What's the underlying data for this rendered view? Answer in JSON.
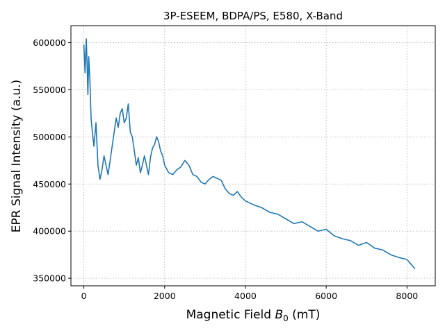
{
  "chart_data": {
    "type": "line",
    "title": "3P-ESEEM, BDPA/PS, E580, X-Band",
    "xlabel_prefix": "Magnetic Field ",
    "xlabel_var": "B",
    "xlabel_sub": "0",
    "xlabel_suffix": " (mT)",
    "ylabel": "EPR Signal Intensity (a.u.)",
    "xlim": [
      -320,
      8700
    ],
    "ylim": [
      342000,
      618000
    ],
    "xticks": [
      0,
      2000,
      4000,
      6000,
      8000
    ],
    "xtick_labels": [
      "0",
      "2000",
      "4000",
      "6000",
      "8000"
    ],
    "yticks": [
      350000,
      400000,
      450000,
      500000,
      550000,
      600000
    ],
    "ytick_labels": [
      "350000",
      "400000",
      "450000",
      "500000",
      "550000",
      "600000"
    ],
    "grid": true,
    "series": [
      {
        "color": "#1f77b4",
        "x": [
          0,
          30,
          60,
          80,
          100,
          120,
          150,
          180,
          210,
          250,
          300,
          350,
          400,
          450,
          500,
          550,
          600,
          650,
          700,
          750,
          800,
          850,
          900,
          950,
          1000,
          1050,
          1100,
          1150,
          1200,
          1250,
          1300,
          1350,
          1400,
          1450,
          1500,
          1550,
          1600,
          1650,
          1700,
          1750,
          1800,
          1850,
          1900,
          1950,
          2000,
          2100,
          2200,
          2300,
          2400,
          2500,
          2600,
          2700,
          2800,
          2900,
          3000,
          3100,
          3200,
          3300,
          3400,
          3500,
          3600,
          3700,
          3800,
          3900,
          4000,
          4200,
          4400,
          4600,
          4800,
          5000,
          5200,
          5400,
          5600,
          5800,
          6000,
          6200,
          6400,
          6600,
          6800,
          7000,
          7200,
          7400,
          7600,
          7800,
          8000,
          8100,
          8200
        ],
        "y": [
          598000,
          568000,
          604000,
          578000,
          545000,
          585000,
          560000,
          520000,
          505000,
          490000,
          515000,
          470000,
          455000,
          465000,
          480000,
          470000,
          460000,
          475000,
          490000,
          505000,
          520000,
          510000,
          525000,
          530000,
          515000,
          520000,
          535000,
          505000,
          500000,
          485000,
          470000,
          478000,
          462000,
          470000,
          480000,
          470000,
          460000,
          478000,
          488000,
          492000,
          500000,
          495000,
          485000,
          480000,
          470000,
          462000,
          460000,
          465000,
          468000,
          475000,
          470000,
          460000,
          458000,
          452000,
          450000,
          455000,
          458000,
          456000,
          454000,
          445000,
          440000,
          438000,
          442000,
          436000,
          432000,
          428000,
          425000,
          420000,
          418000,
          413000,
          408000,
          410000,
          405000,
          400000,
          402000,
          395000,
          392000,
          390000,
          385000,
          388000,
          382000,
          380000,
          375000,
          372000,
          370000,
          365000,
          360000
        ]
      }
    ]
  }
}
